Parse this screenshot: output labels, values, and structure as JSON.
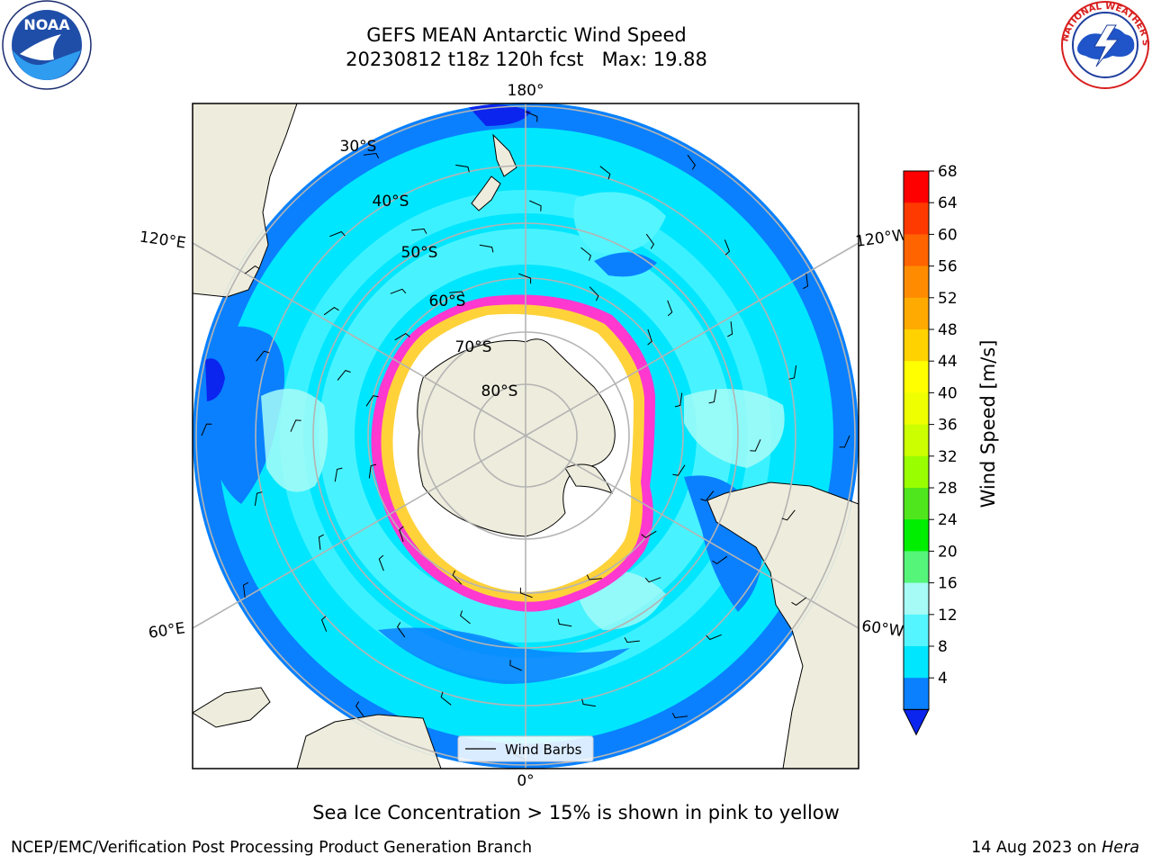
{
  "header": {
    "title": "GEFS MEAN Antarctic Wind Speed",
    "subtitle": "20230812 t18z 120h fcst   Max: 19.88"
  },
  "logos": {
    "left": "noaa-logo",
    "right": "national-weather-service-logo"
  },
  "map": {
    "projection": "south-polar-stereographic",
    "longitude_labels": [
      "180°",
      "120°E",
      "120°W",
      "60°E",
      "60°W",
      "0°"
    ],
    "latitude_labels": [
      "30°S",
      "40°S",
      "50°S",
      "60°S",
      "70°S",
      "80°S"
    ],
    "legend_label": "Wind Barbs",
    "colors": {
      "land": "#eeecdc",
      "ocean_4_8": "#0a80ff",
      "ocean_8_12": "#00e6ff",
      "ocean_12_16": "#55f5ff",
      "ocean_16_20": "#a6fbf7",
      "deep_min": "#0b24ee",
      "ice_pink": "#ff38d0",
      "ice_yellow": "#ffd23a",
      "graticule": "#b4b4b4"
    }
  },
  "colorbar": {
    "label": "Wind Speed [m/s]",
    "ticks": [
      "68",
      "64",
      "60",
      "56",
      "52",
      "48",
      "44",
      "40",
      "36",
      "32",
      "28",
      "24",
      "20",
      "16",
      "12",
      "8",
      "4"
    ],
    "colors_high_to_low": [
      "#ff0000",
      "#ff3a00",
      "#ff6400",
      "#ff8c00",
      "#ffaa00",
      "#ffd200",
      "#ffff00",
      "#f0ff00",
      "#ccff00",
      "#99ff00",
      "#50e61e",
      "#00ee00",
      "#55f57a",
      "#a6fbf7",
      "#55f5ff",
      "#00e6ff",
      "#0a80ff"
    ],
    "extend_min_color": "#0b24ee"
  },
  "footer": {
    "sea_ice_note": "Sea Ice Concentration > 15% is shown in pink to yellow",
    "credit": "NCEP/EMC/Verification Post Processing Product Generation Branch",
    "date": "14 Aug 2023 on ",
    "machine": "Hera"
  }
}
